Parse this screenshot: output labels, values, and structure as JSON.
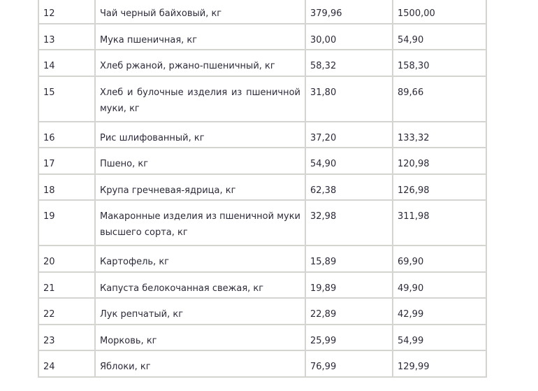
{
  "rows": [
    {
      "num": "12",
      "name": "Чай черный байховый, кг",
      "min": "379,96",
      "max": "1500,00",
      "lines": 1
    },
    {
      "num": "13",
      "name": "Мука пшеничная, кг",
      "min": "30,00",
      "max": "54,90",
      "lines": 1
    },
    {
      "num": "14",
      "name": "Хлеб ржаной, ржано-пшеничный, кг",
      "min": "58,32",
      "max": "158,30",
      "lines": 1
    },
    {
      "num": "15",
      "name": "Хлеб и булочные изделия из пшеничной муки, кг",
      "min": "31,80",
      "max": "89,66",
      "lines": 2
    },
    {
      "num": "16",
      "name": "Рис шлифованный, кг",
      "min": "37,20",
      "max": "133,32",
      "lines": 1
    },
    {
      "num": "17",
      "name": "Пшено, кг",
      "min": "54,90",
      "max": "120,98",
      "lines": 1
    },
    {
      "num": "18",
      "name": "Крупа гречневая-ядрица, кг",
      "min": "62,38",
      "max": "126,98",
      "lines": 1
    },
    {
      "num": "19",
      "name": "Макаронные изделия из пшеничной муки высшего сорта, кг",
      "min": "32,98",
      "max": "311,98",
      "lines": 2
    },
    {
      "num": "20",
      "name": "Картофель, кг",
      "min": "15,89",
      "max": "69,90",
      "lines": 1
    },
    {
      "num": "21",
      "name": "Капуста белокочанная свежая, кг",
      "min": "19,89",
      "max": "49,90",
      "lines": 1
    },
    {
      "num": "22",
      "name": "Лук репчатый, кг",
      "min": "22,89",
      "max": "42,99",
      "lines": 1
    },
    {
      "num": "23",
      "name": "Морковь, кг",
      "min": "25,99",
      "max": "54,99",
      "lines": 1
    },
    {
      "num": "24",
      "name": "Яблоки, кг",
      "min": "76,99",
      "max": "129,99",
      "lines": 1
    }
  ]
}
